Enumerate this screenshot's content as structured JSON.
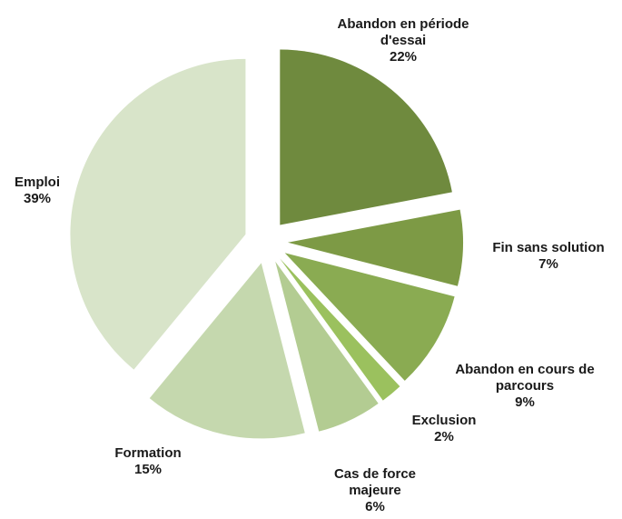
{
  "chart_data": {
    "type": "pie",
    "categories": [
      "Abandon en période d'essai",
      "Fin sans solution",
      "Abandon en cours de parcours",
      "Exclusion",
      "Cas de force majeure",
      "Formation",
      "Emploi"
    ],
    "values": [
      22,
      7,
      9,
      2,
      6,
      15,
      39
    ],
    "value_labels": [
      "22%",
      "7%",
      "9%",
      "2%",
      "6%",
      "15%",
      "39%"
    ],
    "colors": [
      "#6f8a3e",
      "#7d9a45",
      "#8aab52",
      "#9bc15e",
      "#b3cc92",
      "#c5d8ae",
      "#d8e4c9"
    ]
  }
}
